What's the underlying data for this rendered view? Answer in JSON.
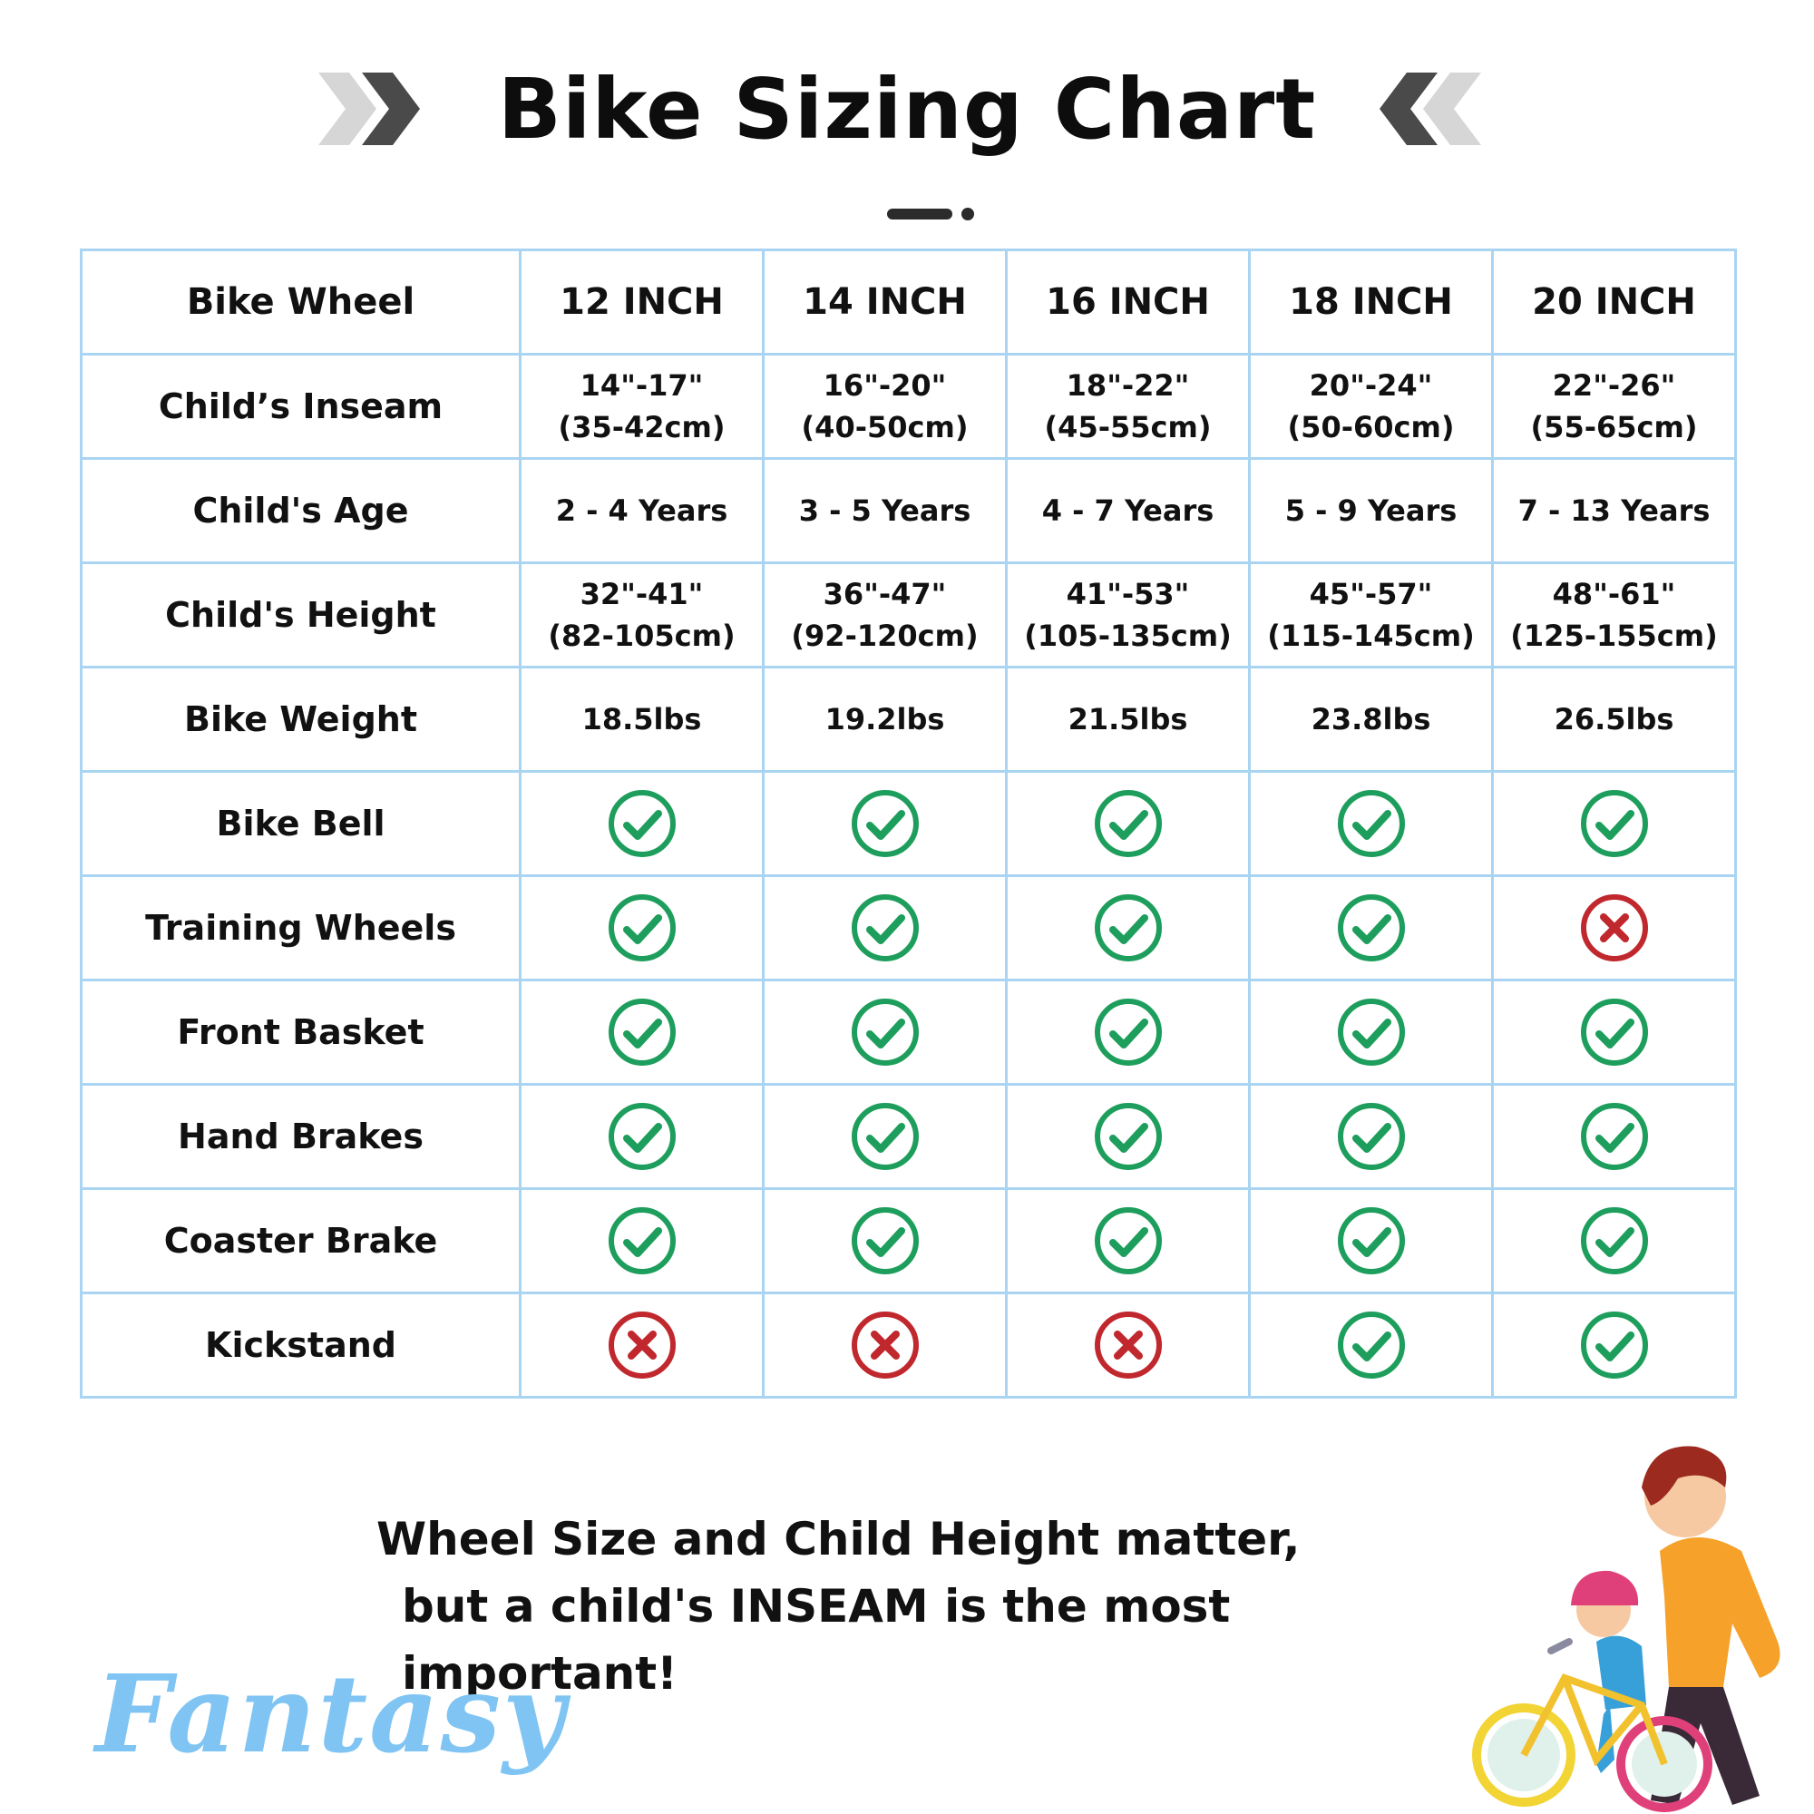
{
  "header": {
    "title": "Bike Sizing Chart"
  },
  "table": {
    "corner_label": "Bike Wheel",
    "columns": [
      "12 INCH",
      "14 INCH",
      "16 INCH",
      "18 INCH",
      "20 INCH"
    ],
    "rows": [
      {
        "label": "Child’s Inseam",
        "cells": [
          [
            "14\"-17\"",
            "(35-42cm)"
          ],
          [
            "16\"-20\"",
            "(40-50cm)"
          ],
          [
            "18\"-22\"",
            "(45-55cm)"
          ],
          [
            "20\"-24\"",
            "(50-60cm)"
          ],
          [
            "22\"-26\"",
            "(55-65cm)"
          ]
        ]
      },
      {
        "label": "Child's Age",
        "cells": [
          "2 - 4 Years",
          "3 - 5 Years",
          "4 - 7 Years",
          "5 - 9 Years",
          "7 - 13 Years"
        ]
      },
      {
        "label": "Child's Height",
        "cells": [
          [
            "32\"-41\"",
            "(82-105cm)"
          ],
          [
            "36\"-47\"",
            "(92-120cm)"
          ],
          [
            "41\"-53\"",
            "(105-135cm)"
          ],
          [
            "45\"-57\"",
            "(115-145cm)"
          ],
          [
            "48\"-61\"",
            "(125-155cm)"
          ]
        ]
      },
      {
        "label": "Bike Weight",
        "cells": [
          "18.5lbs",
          "19.2lbs",
          "21.5lbs",
          "23.8lbs",
          "26.5lbs"
        ]
      },
      {
        "label": "Bike Bell",
        "features": [
          true,
          true,
          true,
          true,
          true
        ]
      },
      {
        "label": "Training Wheels",
        "features": [
          true,
          true,
          true,
          true,
          false
        ]
      },
      {
        "label": "Front Basket",
        "features": [
          true,
          true,
          true,
          true,
          true
        ]
      },
      {
        "label": "Hand Brakes",
        "features": [
          true,
          true,
          true,
          true,
          true
        ]
      },
      {
        "label": "Coaster Brake",
        "features": [
          true,
          true,
          true,
          true,
          true
        ]
      },
      {
        "label": "Kickstand",
        "features": [
          false,
          false,
          false,
          true,
          true
        ]
      }
    ]
  },
  "note": {
    "line1": "Wheel Size and Child Height matter,",
    "line2": "but a child's INSEAM is the most important!"
  },
  "brand": {
    "name": "Fantasy"
  },
  "colors": {
    "check": "#1e9e5c",
    "cross": "#c0282e",
    "grid": "#a9d4f2",
    "brand": "#7fc4f3"
  },
  "icons": {
    "yes": "check-circle-icon",
    "no": "cross-circle-icon"
  }
}
